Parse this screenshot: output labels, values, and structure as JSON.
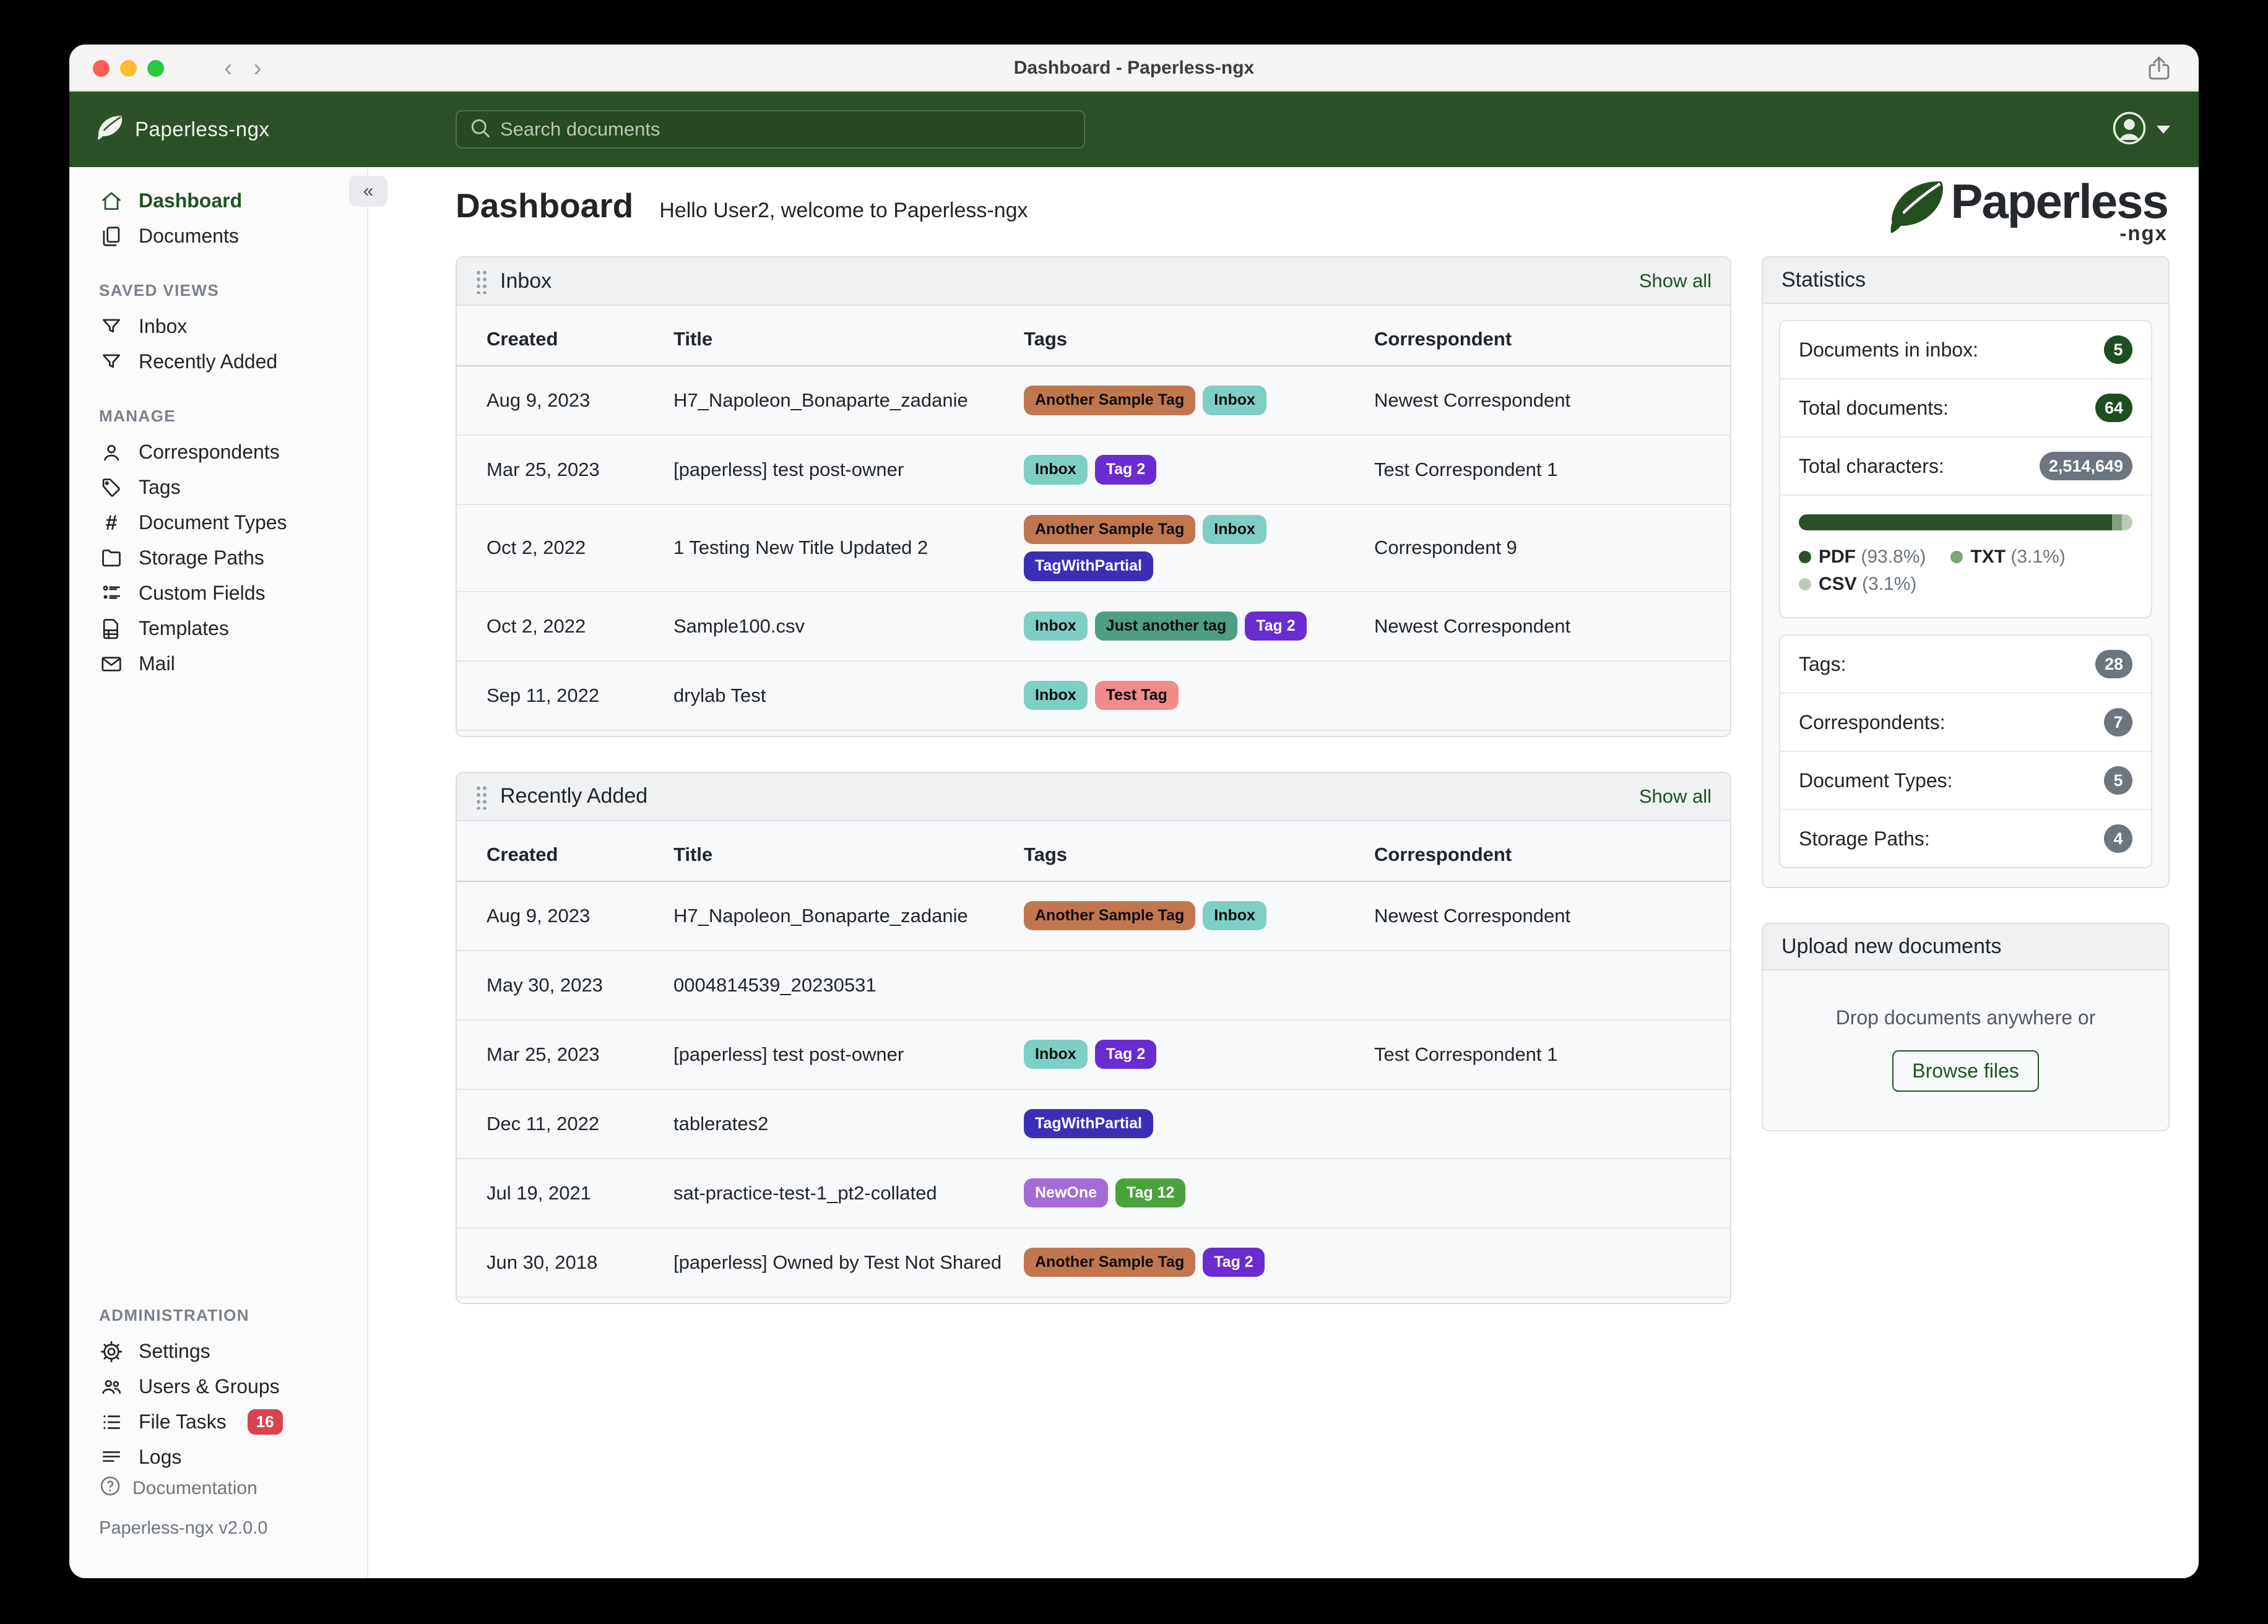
{
  "titlebar": {
    "title": "Dashboard - Paperless-ngx"
  },
  "navbar": {
    "brand": "Paperless-ngx",
    "search_placeholder": "Search documents"
  },
  "sidebar": {
    "primary": [
      {
        "label": "Dashboard",
        "icon": "home",
        "active": true
      },
      {
        "label": "Documents",
        "icon": "documents",
        "active": false
      }
    ],
    "sections": [
      {
        "title": "SAVED VIEWS",
        "items": [
          {
            "label": "Inbox",
            "icon": "funnel"
          },
          {
            "label": "Recently Added",
            "icon": "funnel"
          }
        ]
      },
      {
        "title": "MANAGE",
        "items": [
          {
            "label": "Correspondents",
            "icon": "person"
          },
          {
            "label": "Tags",
            "icon": "tag"
          },
          {
            "label": "Document Types",
            "icon": "hash"
          },
          {
            "label": "Storage Paths",
            "icon": "folder"
          },
          {
            "label": "Custom Fields",
            "icon": "fields"
          },
          {
            "label": "Templates",
            "icon": "template"
          },
          {
            "label": "Mail",
            "icon": "mail"
          }
        ]
      },
      {
        "title": "ADMINISTRATION",
        "items": [
          {
            "label": "Settings",
            "icon": "gear"
          },
          {
            "label": "Users & Groups",
            "icon": "users"
          },
          {
            "label": "File Tasks",
            "icon": "tasks",
            "badge": "16"
          },
          {
            "label": "Logs",
            "icon": "logs"
          }
        ]
      }
    ],
    "footer": {
      "documentation": "Documentation",
      "version": "Paperless-ngx v2.0.0"
    }
  },
  "page": {
    "title": "Dashboard",
    "greeting": "Hello User2, welcome to Paperless-ngx"
  },
  "logo": {
    "word": "Paperless",
    "sub": "-ngx"
  },
  "tag_palette": {
    "another_sample": {
      "bg": "#c1764e",
      "fg": "#0c0c0c"
    },
    "inbox": {
      "bg": "#7dcfc4",
      "fg": "#0c0c0c"
    },
    "tag2": {
      "bg": "#6a2cd0",
      "fg": "#ffffff"
    },
    "tagwithpartial": {
      "bg": "#3d2eb8",
      "fg": "#ffffff"
    },
    "just_another": {
      "bg": "#4e9e86",
      "fg": "#0c0c0c"
    },
    "test_tag": {
      "bg": "#f08b8b",
      "fg": "#0c0c0c"
    },
    "newone": {
      "bg": "#a46bd8",
      "fg": "#ffffff"
    },
    "tag12": {
      "bg": "#49a33c",
      "fg": "#ffffff"
    }
  },
  "widgets": {
    "inbox": {
      "title": "Inbox",
      "show_all": "Show all",
      "columns": [
        "Created",
        "Title",
        "Tags",
        "Correspondent"
      ],
      "rows": [
        {
          "created": "Aug 9, 2023",
          "title": "H7_Napoleon_Bonaparte_zadanie",
          "tags": [
            {
              "label": "Another Sample Tag",
              "color": "another_sample"
            },
            {
              "label": "Inbox",
              "color": "inbox"
            }
          ],
          "correspondent": "Newest Correspondent"
        },
        {
          "created": "Mar 25, 2023",
          "title": "[paperless] test post-owner",
          "tags": [
            {
              "label": "Inbox",
              "color": "inbox"
            },
            {
              "label": "Tag 2",
              "color": "tag2"
            }
          ],
          "correspondent": "Test Correspondent 1"
        },
        {
          "created": "Oct 2, 2022",
          "title": "1 Testing New Title Updated 2",
          "tags": [
            {
              "label": "Another Sample Tag",
              "color": "another_sample"
            },
            {
              "label": "Inbox",
              "color": "inbox"
            },
            {
              "label": "TagWithPartial",
              "color": "tagwithpartial"
            }
          ],
          "correspondent": "Correspondent 9"
        },
        {
          "created": "Oct 2, 2022",
          "title": "Sample100.csv",
          "tags": [
            {
              "label": "Inbox",
              "color": "inbox"
            },
            {
              "label": "Just another tag",
              "color": "just_another"
            },
            {
              "label": "Tag 2",
              "color": "tag2"
            }
          ],
          "correspondent": "Newest Correspondent"
        },
        {
          "created": "Sep 11, 2022",
          "title": "drylab Test",
          "tags": [
            {
              "label": "Inbox",
              "color": "inbox"
            },
            {
              "label": "Test Tag",
              "color": "test_tag"
            }
          ],
          "correspondent": ""
        }
      ]
    },
    "recent": {
      "title": "Recently Added",
      "show_all": "Show all",
      "columns": [
        "Created",
        "Title",
        "Tags",
        "Correspondent"
      ],
      "rows": [
        {
          "created": "Aug 9, 2023",
          "title": "H7_Napoleon_Bonaparte_zadanie",
          "tags": [
            {
              "label": "Another Sample Tag",
              "color": "another_sample"
            },
            {
              "label": "Inbox",
              "color": "inbox"
            }
          ],
          "correspondent": "Newest Correspondent"
        },
        {
          "created": "May 30, 2023",
          "title": "0004814539_20230531",
          "tags": [],
          "correspondent": ""
        },
        {
          "created": "Mar 25, 2023",
          "title": "[paperless] test post-owner",
          "tags": [
            {
              "label": "Inbox",
              "color": "inbox"
            },
            {
              "label": "Tag 2",
              "color": "tag2"
            }
          ],
          "correspondent": "Test Correspondent 1"
        },
        {
          "created": "Dec 11, 2022",
          "title": "tablerates2",
          "tags": [
            {
              "label": "TagWithPartial",
              "color": "tagwithpartial"
            }
          ],
          "correspondent": ""
        },
        {
          "created": "Jul 19, 2021",
          "title": "sat-practice-test-1_pt2-collated",
          "tags": [
            {
              "label": "NewOne",
              "color": "newone"
            },
            {
              "label": "Tag 12",
              "color": "tag12"
            }
          ],
          "correspondent": ""
        },
        {
          "created": "Jun 30, 2018",
          "title": "[paperless] Owned by Test Not Shared",
          "tags": [
            {
              "label": "Another Sample Tag",
              "color": "another_sample"
            },
            {
              "label": "Tag 2",
              "color": "tag2"
            }
          ],
          "correspondent": ""
        }
      ]
    },
    "statistics": {
      "title": "Statistics",
      "counts": [
        {
          "label": "Documents in inbox:",
          "value": "5",
          "badge": "green"
        },
        {
          "label": "Total documents:",
          "value": "64",
          "badge": "green"
        },
        {
          "label": "Total characters:",
          "value": "2,514,649",
          "badge": "gray"
        }
      ],
      "file_types": {
        "segments": [
          {
            "label": "PDF",
            "pct": 93.8,
            "color": "#2b5226"
          },
          {
            "label": "TXT",
            "pct": 3.1,
            "color": "#7fa278"
          },
          {
            "label": "CSV",
            "pct": 3.1,
            "color": "#bccbb4"
          }
        ],
        "legend_rows": [
          [
            0,
            1
          ],
          [
            2
          ]
        ]
      },
      "meta": [
        {
          "label": "Tags:",
          "value": "28",
          "badge": "gray"
        },
        {
          "label": "Correspondents:",
          "value": "7",
          "badge": "gray"
        },
        {
          "label": "Document Types:",
          "value": "5",
          "badge": "gray"
        },
        {
          "label": "Storage Paths:",
          "value": "4",
          "badge": "gray"
        }
      ]
    },
    "upload": {
      "title": "Upload new documents",
      "hint": "Drop documents anywhere or",
      "button": "Browse files"
    }
  }
}
